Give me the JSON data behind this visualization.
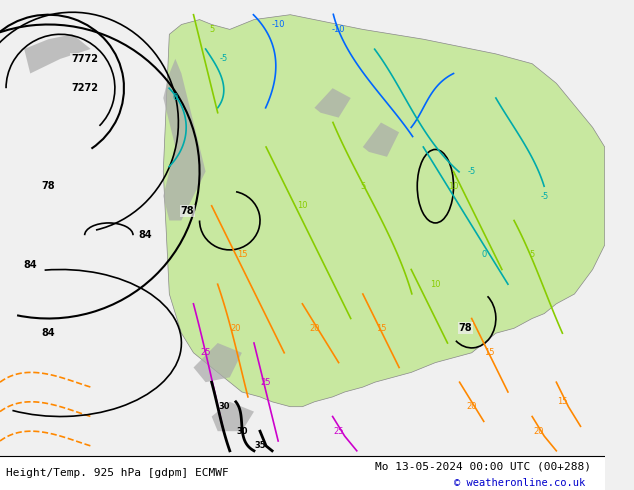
{
  "title_left": "Height/Temp. 925 hPa [gdpm] ECMWF",
  "title_right": "Mo 13-05-2024 00:00 UTC (00+288)",
  "copyright": "© weatheronline.co.uk",
  "bg_color": "#f0f0f0",
  "land_color": "#c8e8a0",
  "mountain_color": "#aaaaaa",
  "footer_bg": "#ffffff",
  "footer_text_color": "#000000",
  "copyright_color": "#0000cc",
  "green_color": "#88cc00",
  "cyan_color": "#00aaaa",
  "blue_color": "#0066ff",
  "orange_color": "#ff8800",
  "magenta_color": "#cc00cc",
  "fig_width": 6.34,
  "fig_height": 4.9,
  "dpi": 100
}
